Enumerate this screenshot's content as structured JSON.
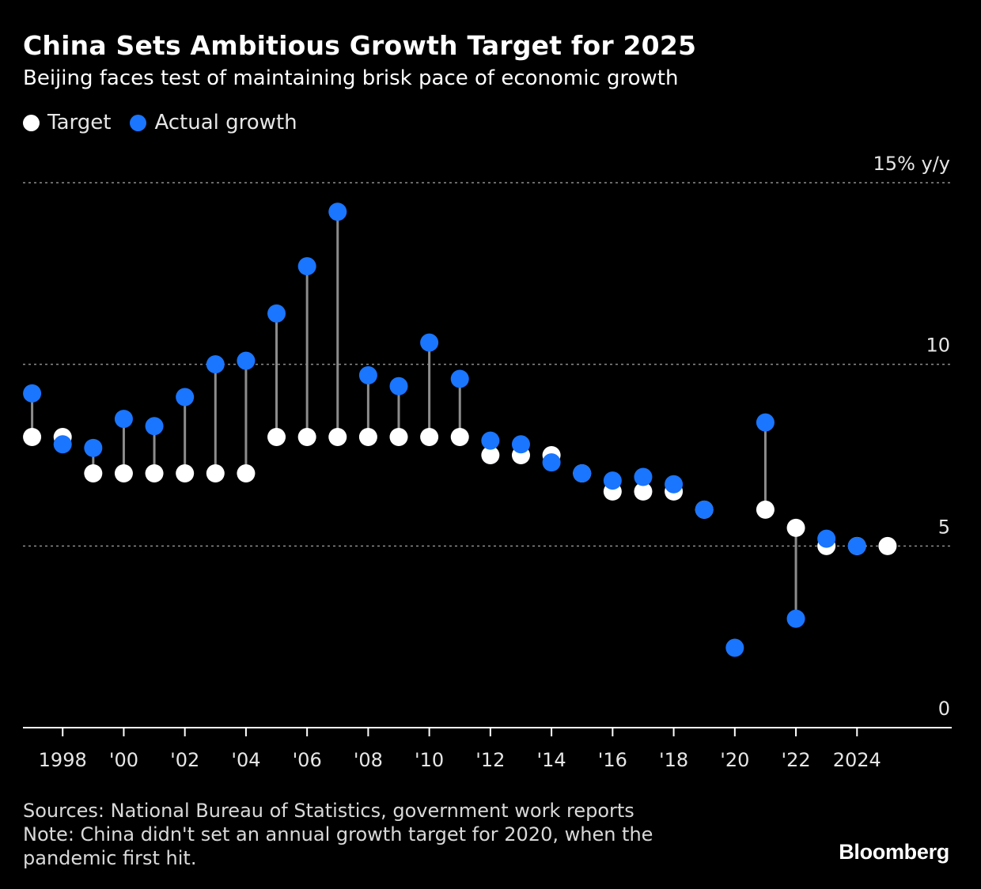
{
  "title": "China Sets Ambitious Growth Target for 2025",
  "subtitle": "Beijing faces test of maintaining brisk pace of economic growth",
  "legend": [
    {
      "label": "Target",
      "color": "#ffffff"
    },
    {
      "label": "Actual growth",
      "color": "#1a75ff"
    }
  ],
  "footer": {
    "sources": "Sources: National Bureau of Statistics, government work reports",
    "note_line1": "Note: China didn't set an annual growth target for 2020, when the",
    "note_line2": "pandemic first hit."
  },
  "brand": "Bloomberg",
  "colors": {
    "target": "#ffffff",
    "actual": "#1a75ff",
    "stem": "#8c8c8c",
    "grid": "#8c8c8c",
    "axis": "#ffffff",
    "tick_text": "#e6e6e6"
  },
  "chart_data": {
    "type": "scatter",
    "title": "China Sets Ambitious Growth Target for 2025",
    "subtitle": "Beijing faces test of maintaining brisk pace of economic growth",
    "ylim": [
      0,
      15
    ],
    "y_ticks": [
      {
        "value": 0,
        "label": "0"
      },
      {
        "value": 5,
        "label": "5"
      },
      {
        "value": 10,
        "label": "10"
      },
      {
        "value": 15,
        "label": "15% y/y"
      }
    ],
    "x_range": [
      1996.7,
      2027.1
    ],
    "x_ticks": [
      {
        "value": 1998,
        "label": "1998"
      },
      {
        "value": 2000,
        "label": "'00"
      },
      {
        "value": 2002,
        "label": "'02"
      },
      {
        "value": 2004,
        "label": "'04"
      },
      {
        "value": 2006,
        "label": "'06"
      },
      {
        "value": 2008,
        "label": "'08"
      },
      {
        "value": 2010,
        "label": "'10"
      },
      {
        "value": 2012,
        "label": "'12"
      },
      {
        "value": 2014,
        "label": "'14"
      },
      {
        "value": 2016,
        "label": "'16"
      },
      {
        "value": 2018,
        "label": "'18"
      },
      {
        "value": 2020,
        "label": "'20"
      },
      {
        "value": 2022,
        "label": "'22"
      },
      {
        "value": 2024,
        "label": "2024"
      }
    ],
    "grid": true,
    "legend_position": "top-left",
    "x": [
      1997,
      1998,
      1999,
      2000,
      2001,
      2002,
      2003,
      2004,
      2005,
      2006,
      2007,
      2008,
      2009,
      2010,
      2011,
      2012,
      2013,
      2014,
      2015,
      2016,
      2017,
      2018,
      2019,
      2020,
      2021,
      2022,
      2023,
      2024,
      2025
    ],
    "series": [
      {
        "name": "Target",
        "values": [
          8,
          8,
          7,
          7,
          7,
          7,
          7,
          7,
          8,
          8,
          8,
          8,
          8,
          8,
          8,
          7.5,
          7.5,
          7.5,
          7,
          6.5,
          6.5,
          6.5,
          6,
          null,
          6,
          5.5,
          5,
          5,
          5
        ]
      },
      {
        "name": "Actual growth",
        "values": [
          9.2,
          7.8,
          7.7,
          8.5,
          8.3,
          9.1,
          10.0,
          10.1,
          11.4,
          12.7,
          14.2,
          9.7,
          9.4,
          10.6,
          9.6,
          7.9,
          7.8,
          7.3,
          7.0,
          6.8,
          6.9,
          6.7,
          6.0,
          2.2,
          8.4,
          3.0,
          5.2,
          5.0,
          null
        ]
      }
    ]
  }
}
